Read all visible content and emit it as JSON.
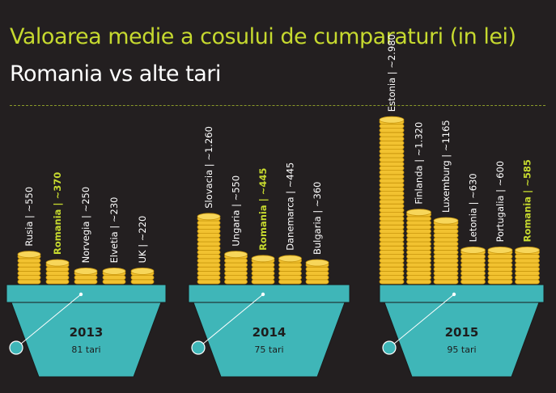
{
  "header": {
    "title": "Valoarea medie a cosului de cumparaturi (in lei)",
    "subtitle": "Romania vs alte tari"
  },
  "colors": {
    "background": "#231f20",
    "accent": "#c6d92f",
    "text": "#ffffff",
    "basket": "#3fb6b8",
    "coin": "#f2c230",
    "coin_rim": "#c9960c"
  },
  "chart_data": [
    {
      "type": "bar",
      "year": "2013",
      "count_label": "81 tari",
      "categories": [
        "Rusia | ~550",
        "Romania | ~370",
        "Norvegia | ~250",
        "Elvetia | ~230",
        "UK | ~220"
      ],
      "values": [
        550,
        370,
        250,
        230,
        220
      ],
      "highlight_index": 1
    },
    {
      "type": "bar",
      "year": "2014",
      "count_label": "75 tari",
      "categories": [
        "Slovacia | ~1.260",
        "Ungaria | ~550",
        "Romania | ~445",
        "Danemarca | ~445",
        "Bulgaria | ~360"
      ],
      "values": [
        1260,
        550,
        445,
        445,
        360
      ],
      "highlight_index": 2
    },
    {
      "type": "bar",
      "year": "2015",
      "count_label": "95 tari",
      "categories": [
        "Estonia | ~2.980",
        "Finlanda | ~1.320",
        "Luxemburg | ~1165",
        "Letonia | ~630",
        "Portugalia | ~600",
        "Romania | ~585"
      ],
      "values": [
        2980,
        1320,
        1165,
        630,
        600,
        585
      ],
      "highlight_index": 5
    }
  ]
}
